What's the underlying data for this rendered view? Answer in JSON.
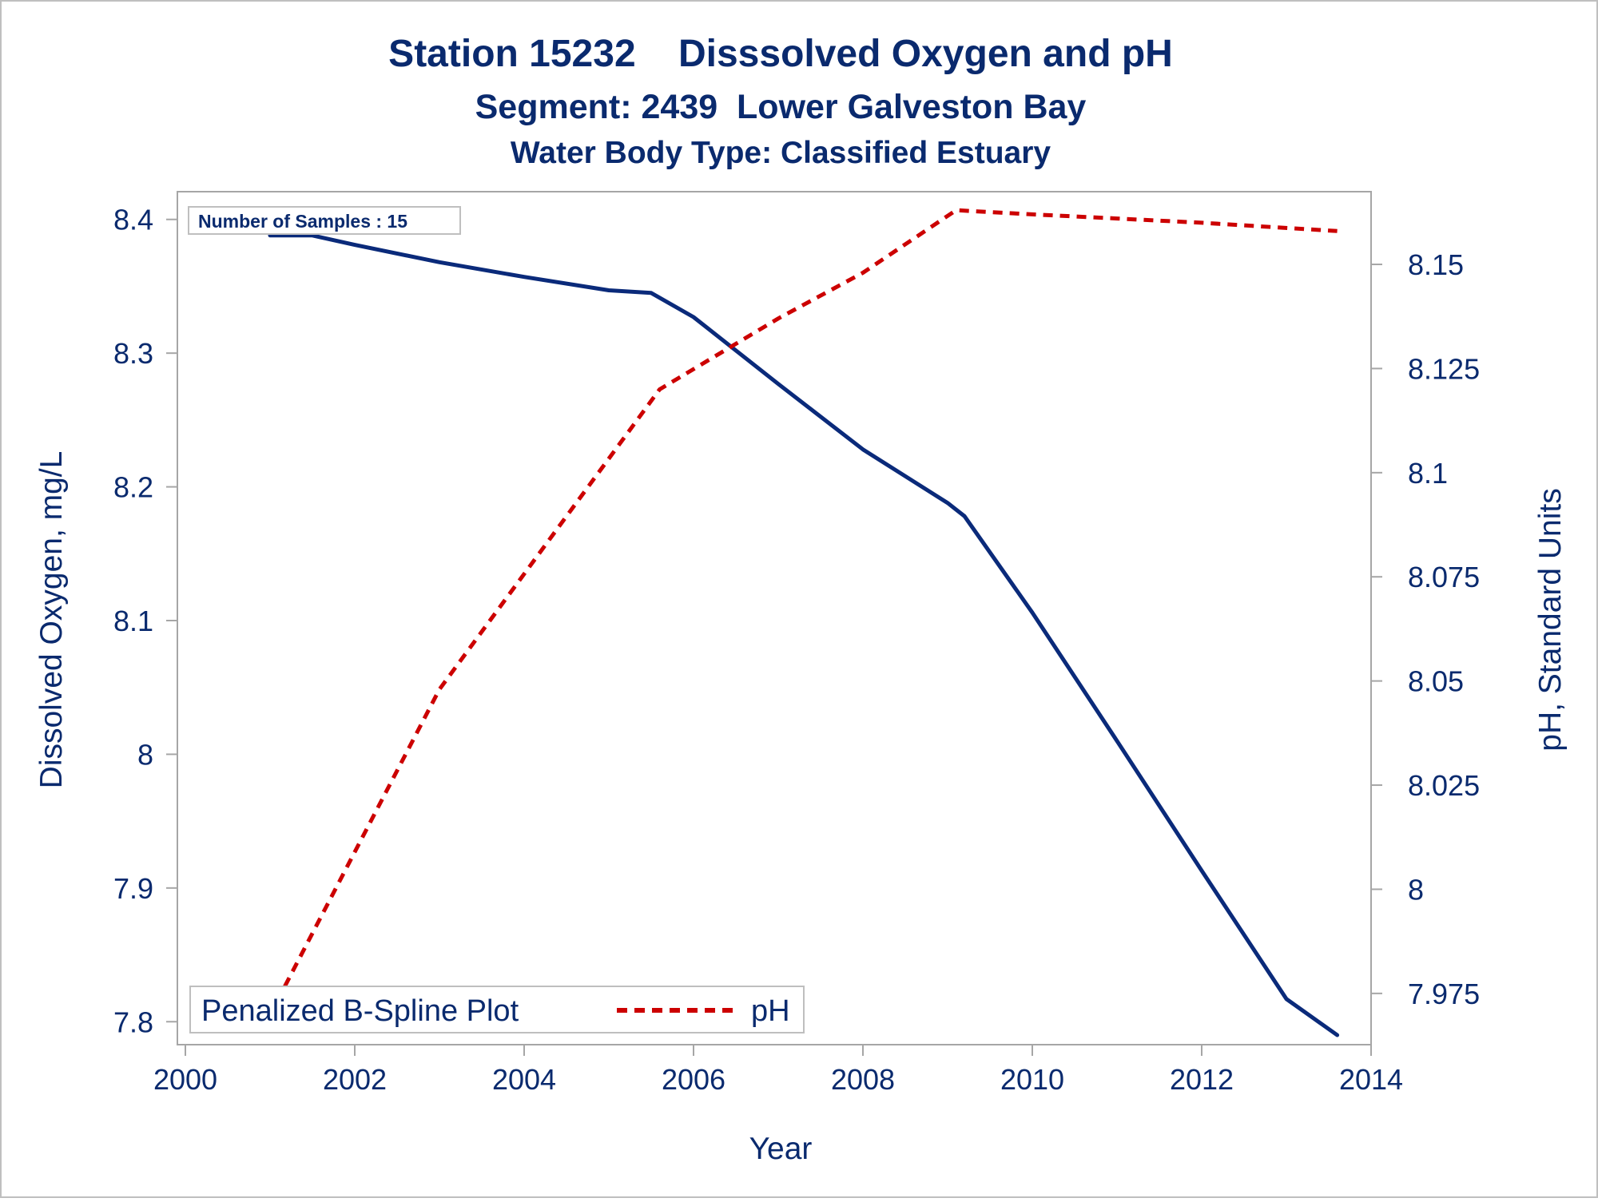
{
  "chart_data": {
    "type": "line",
    "title": "Station 15232    Disssolved Oxygen and pH",
    "subtitle": "Segment: 2439  Lower Galveston Bay",
    "subtitle2": "Water Body Type: Classified Estuary",
    "xlabel": "Year",
    "ylabel_left": "Dissolved Oxygen, mg/L",
    "ylabel_right": "pH, Standard Units",
    "xlim": [
      2000,
      2014
    ],
    "ylim_left": [
      7.79,
      8.41
    ],
    "ylim_right": [
      7.965,
      8.164
    ],
    "x_ticks": [
      "2000",
      "2002",
      "2004",
      "2006",
      "2008",
      "2010",
      "2012",
      "2014"
    ],
    "y_left_ticks": [
      "7.8",
      "7.9",
      "8",
      "8.1",
      "8.2",
      "8.3",
      "8.4"
    ],
    "y_right_ticks": [
      "7.975",
      "8",
      "8.025",
      "8.05",
      "8.075",
      "8.1",
      "8.125",
      "8.15"
    ],
    "annotation": "Number of Samples : 15",
    "legend": {
      "title": "Penalized B-Spline Plot",
      "entries": [
        "pH"
      ],
      "placement": "bottom-left"
    },
    "series": [
      {
        "axis": "left",
        "color": "#0a2a7a",
        "dash": "solid",
        "x": [
          2001.0,
          2001.5,
          2002.0,
          2003.0,
          2004.0,
          2005.0,
          2005.5,
          2006.0,
          2007.0,
          2008.0,
          2009.0,
          2009.2,
          2010.0,
          2011.0,
          2012.0,
          2013.0,
          2013.6
        ],
        "values": [
          8.388,
          8.388,
          8.381,
          8.368,
          8.357,
          8.347,
          8.345,
          8.327,
          8.277,
          8.228,
          8.188,
          8.178,
          8.106,
          8.01,
          7.913,
          7.817,
          7.79
        ]
      },
      {
        "name": "pH",
        "axis": "right",
        "color": "#cc0000",
        "dash": "dashed",
        "x": [
          2000.9,
          2003.0,
          2005.6,
          2007.0,
          2008.0,
          2009.1,
          2010.0,
          2011.0,
          2012.0,
          2013.6
        ],
        "values": [
          7.966,
          8.048,
          8.12,
          8.137,
          8.148,
          8.163,
          8.162,
          8.161,
          8.16,
          8.158
        ]
      }
    ]
  }
}
